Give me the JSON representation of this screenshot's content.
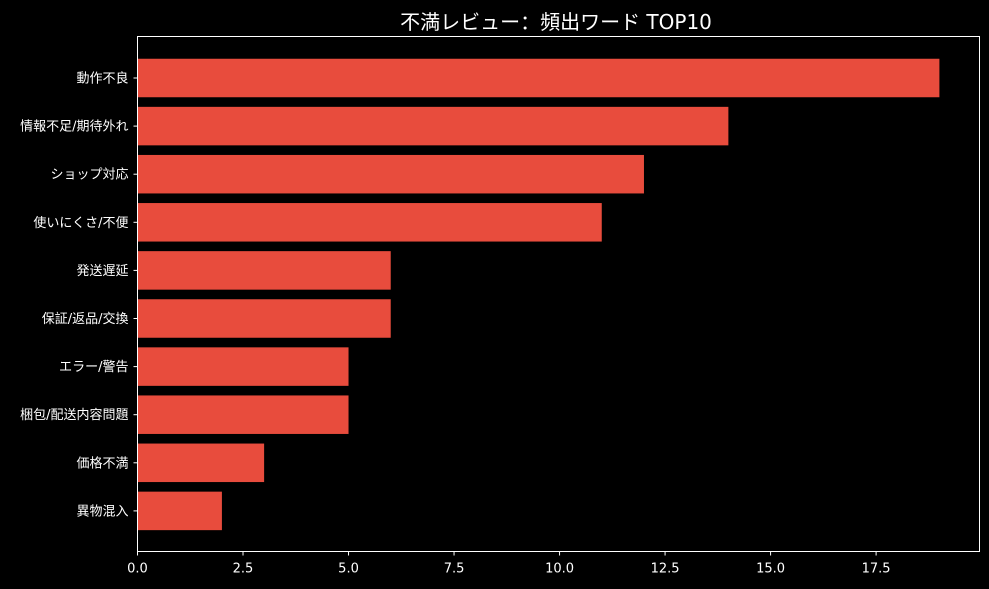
{
  "chart_data": {
    "type": "bar",
    "orientation": "horizontal",
    "title": "不満レビュー：頻出ワード TOP10",
    "categories": [
      "動作不良",
      "情報不足/期待外れ",
      "ショップ対応",
      "使いにくさ/不便",
      "発送遅延",
      "保証/返品/交換",
      "エラー/警告",
      "梱包/配送内容問題",
      "価格不満",
      "異物混入"
    ],
    "values": [
      19,
      14,
      12,
      11,
      6,
      6,
      5,
      5,
      3,
      2
    ],
    "xlim": [
      0,
      19.95
    ],
    "x_ticks": [
      0,
      2.5,
      5,
      7.5,
      10,
      12.5,
      15,
      17.5
    ],
    "x_tick_labels": [
      "0.0",
      "2.5",
      "5.0",
      "7.5",
      "10.0",
      "12.5",
      "15.0",
      "17.5"
    ],
    "grid": false,
    "colors": {
      "bar": "#e84c3d",
      "background": "#000000",
      "foreground": "#ffffff"
    }
  }
}
